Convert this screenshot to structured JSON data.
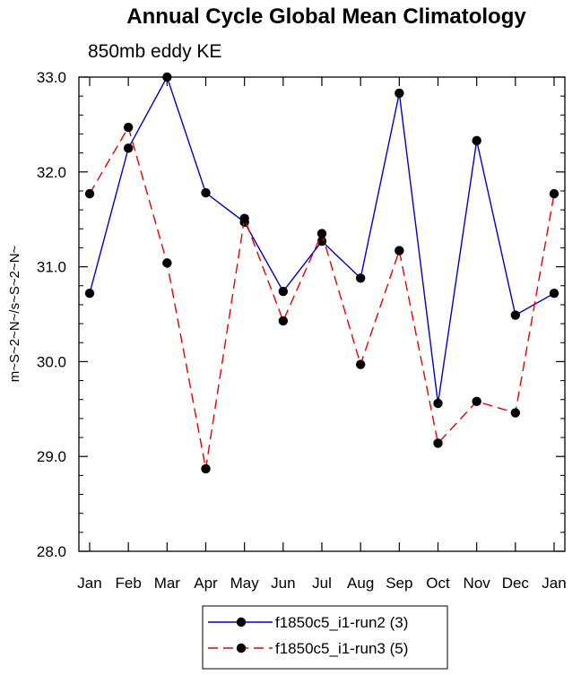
{
  "chart_data": {
    "type": "line",
    "title": "Annual Cycle Global Mean Climatology",
    "subtitle": "850mb eddy KE",
    "xlabel": "",
    "ylabel": "m~S~2~N~/s~S~2~N~",
    "categories": [
      "Jan",
      "Feb",
      "Mar",
      "Apr",
      "May",
      "Jun",
      "Jul",
      "Aug",
      "Sep",
      "Oct",
      "Nov",
      "Dec",
      "Jan"
    ],
    "ylim": [
      28.0,
      33.0
    ],
    "yticks": [
      "28.0",
      "29.0",
      "30.0",
      "31.0",
      "32.0",
      "33.0"
    ],
    "yticks_values": [
      28.0,
      29.0,
      30.0,
      31.0,
      32.0,
      33.0
    ],
    "grid": false,
    "legend_position": "bottom-center",
    "series": [
      {
        "name": "f1850c5_i1-run2 (3)",
        "color": "#0000cc",
        "line_style": "solid",
        "marker": "filled-circle",
        "values": [
          30.72,
          32.25,
          33.0,
          31.78,
          31.47,
          30.74,
          31.27,
          30.88,
          32.83,
          29.56,
          32.33,
          30.49,
          30.72
        ]
      },
      {
        "name": "f1850c5_i1-run3 (5)",
        "color": "#e60000",
        "line_style": "dashed",
        "marker": "filled-circle",
        "values": [
          31.77,
          32.47,
          31.04,
          28.87,
          31.51,
          30.43,
          31.35,
          29.97,
          31.17,
          29.14,
          29.58,
          29.46,
          31.77
        ]
      }
    ]
  }
}
